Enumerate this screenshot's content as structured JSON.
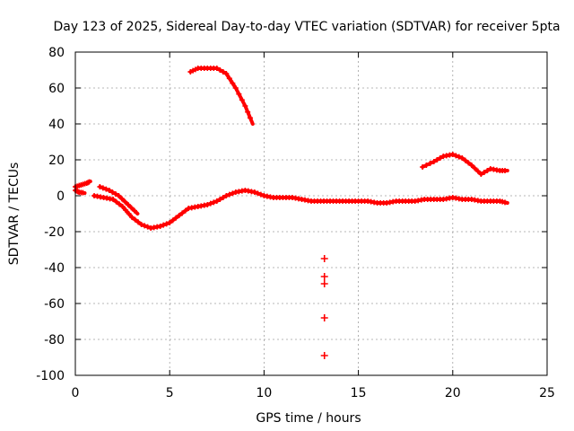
{
  "chart_data": {
    "type": "scatter",
    "title": "Day 123 of 2025, Sidereal Day-to-day VTEC variation (SDTVAR) for receiver 5pta",
    "xlabel": "GPS time / hours",
    "ylabel": "SDTVAR / TECUs",
    "xlim": [
      0,
      25
    ],
    "ylim": [
      -100,
      80
    ],
    "xticks": [
      0,
      5,
      10,
      15,
      20,
      25
    ],
    "yticks": [
      -100,
      -80,
      -60,
      -40,
      -20,
      0,
      20,
      40,
      60,
      80
    ],
    "grid": true,
    "color": "#ff0000",
    "series": [
      {
        "name": "sat-trace-1",
        "style": "dense",
        "x": [
          0.0,
          0.3,
          0.6,
          0.8
        ],
        "y": [
          5,
          6,
          7,
          8
        ]
      },
      {
        "name": "sat-trace-2",
        "style": "dense",
        "x": [
          0.0,
          0.2,
          0.5
        ],
        "y": [
          3,
          2,
          1.5
        ]
      },
      {
        "name": "sat-trace-3",
        "style": "dense",
        "x": [
          1.0,
          1.5,
          2.0,
          2.5,
          3.0,
          3.5,
          4.0,
          4.5,
          5.0,
          5.5,
          6.0,
          6.5,
          7.0,
          7.5,
          8.0,
          8.5,
          9.0,
          9.5,
          10.0,
          10.5,
          11.0,
          11.5,
          12.0,
          12.5,
          13.0,
          13.5,
          14.0,
          14.5,
          15.0,
          15.5,
          16.0,
          16.5,
          17.0,
          17.5,
          18.0,
          18.5,
          19.0,
          19.5,
          20.0,
          20.5,
          21.0,
          21.5,
          22.0,
          22.5,
          22.9
        ],
        "y": [
          0,
          -1,
          -2,
          -6,
          -12,
          -16,
          -18,
          -17,
          -15,
          -11,
          -7,
          -6,
          -5,
          -3,
          0,
          2,
          3,
          2,
          0,
          -1,
          -1,
          -1,
          -2,
          -3,
          -3,
          -3,
          -3,
          -3,
          -3,
          -3,
          -4,
          -4,
          -3,
          -3,
          -3,
          -2,
          -2,
          -2,
          -1,
          -2,
          -2,
          -3,
          -3,
          -3,
          -4
        ]
      },
      {
        "name": "sat-trace-4",
        "style": "dense",
        "x": [
          1.3,
          1.8,
          2.3,
          2.8,
          3.3
        ],
        "y": [
          5,
          3,
          0,
          -5,
          -10
        ]
      },
      {
        "name": "sat-trace-5",
        "style": "dense",
        "x": [
          6.1,
          6.5,
          7.0,
          7.5,
          8.0,
          8.5,
          9.0,
          9.4
        ],
        "y": [
          69,
          71,
          71,
          71,
          68,
          60,
          50,
          40
        ]
      },
      {
        "name": "sat-trace-6",
        "style": "dense",
        "x": [
          18.4,
          19.0,
          19.5,
          20.0,
          20.5,
          21.0,
          21.5,
          22.0,
          22.5,
          22.9
        ],
        "y": [
          16,
          19,
          22,
          23,
          21,
          17,
          12,
          15,
          14,
          14
        ]
      },
      {
        "name": "outliers",
        "style": "points",
        "x": [
          13.2,
          13.2,
          13.2,
          13.2,
          13.2
        ],
        "y": [
          -35,
          -45,
          -49,
          -68,
          -89
        ]
      }
    ]
  }
}
